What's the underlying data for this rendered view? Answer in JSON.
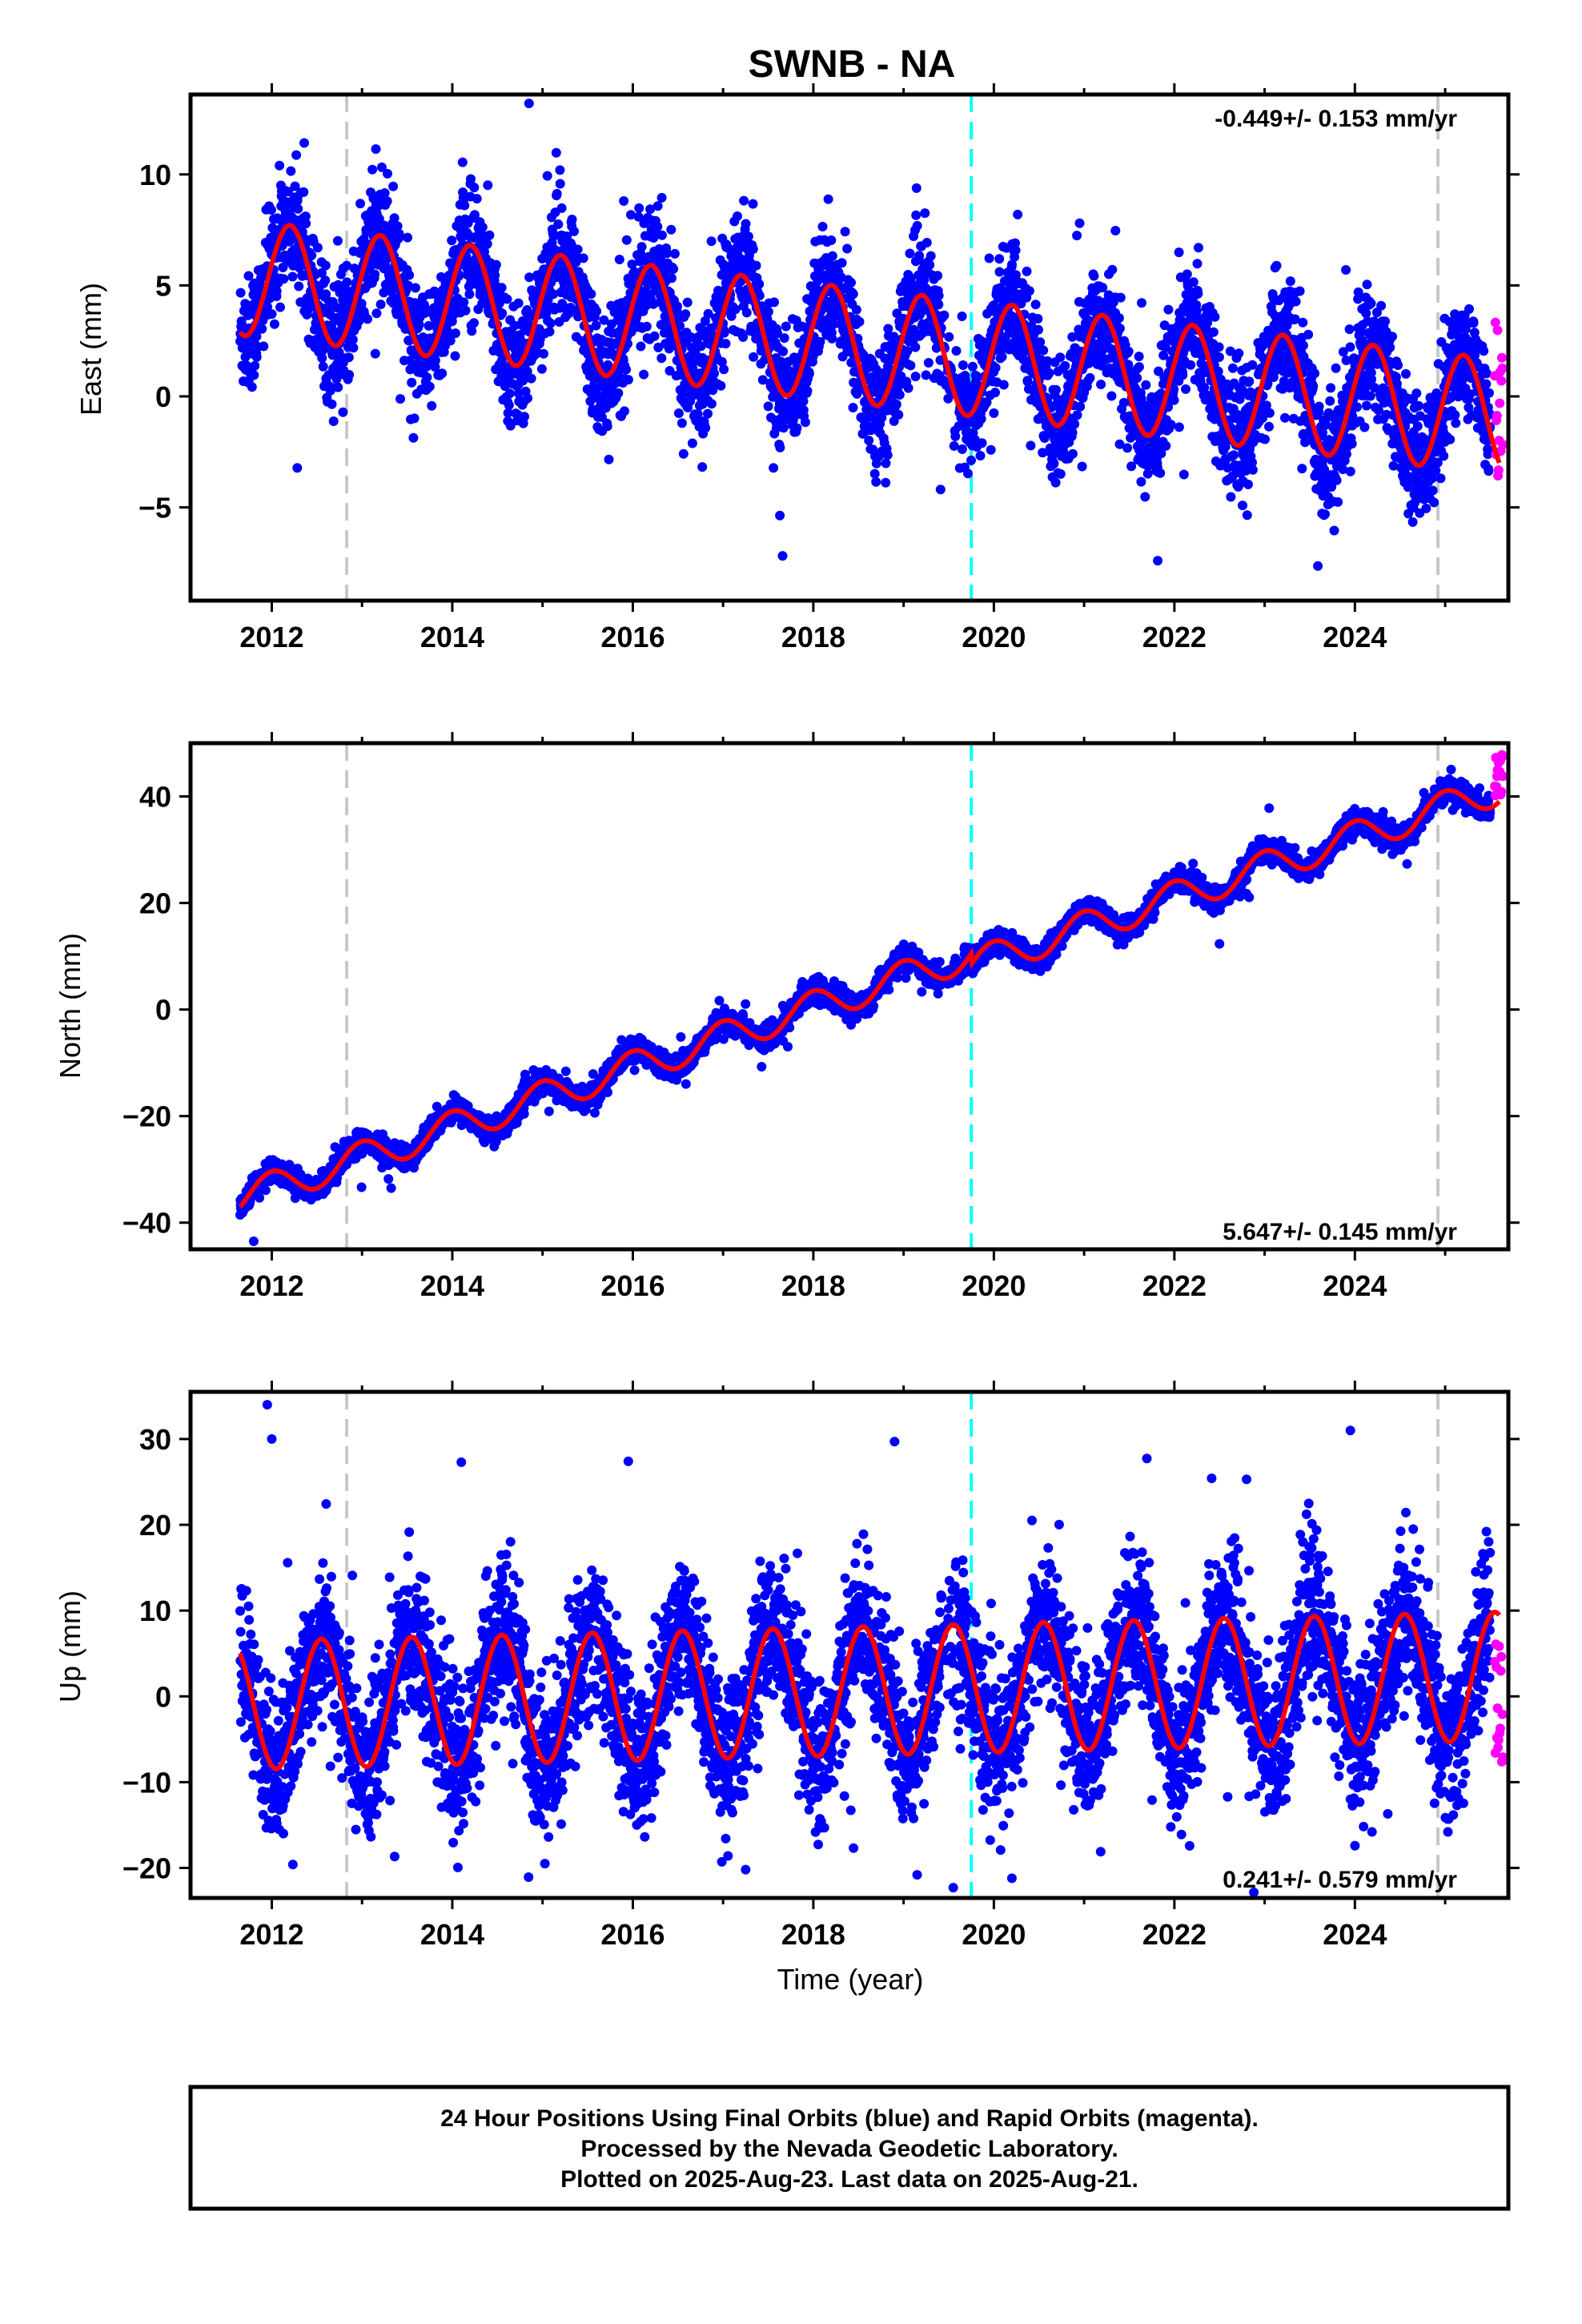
{
  "title": "SWNB - NA",
  "colors": {
    "final_orbits": "#0000ff",
    "rapid_orbits": "#ff00ff",
    "model": "#ff0000",
    "equipment_change": "#c8c8c8",
    "event": "#00ffff"
  },
  "xlabel": "Time (year)",
  "caption": [
    "24 Hour Positions Using Final Orbits (blue) and Rapid Orbits (magenta).",
    "Processed by the Nevada Geodetic Laboratory.",
    "Plotted on 2025-Aug-23. Last data on 2025-Aug-21."
  ],
  "chart_data": [
    {
      "type": "scatter",
      "component": "east",
      "ylabel": "East (mm)",
      "rate_text": "-0.449+/- 0.153 mm/yr",
      "rate_position": "top-right",
      "xlim": [
        2011.1,
        2025.7
      ],
      "ylim": [
        -9.2,
        13.6
      ],
      "xticks": [
        2012,
        2014,
        2016,
        2018,
        2020,
        2022,
        2024
      ],
      "yticks": [
        -5,
        0,
        5,
        10
      ],
      "vlines": [
        {
          "x": 2012.83,
          "color": "#c8c8c8"
        },
        {
          "x": 2019.75,
          "color": "#00ffff"
        },
        {
          "x": 2024.92,
          "color": "#c8c8c8"
        }
      ],
      "model": {
        "start": 2011.65,
        "end": 2025.6,
        "offset": 2.5,
        "rate": -0.449,
        "amplitude": 2.6,
        "phase": 0.3,
        "ref": 2018.0,
        "offset_jump_at": 2019.75,
        "offset_jump": 0.0
      },
      "scatter": {
        "sd": 1.3,
        "spread_per_year": 0.0
      },
      "rapid": {
        "start": 2025.55,
        "end": 2025.64,
        "values_min": -4.0,
        "values_max": 4.2
      },
      "outliers": [
        [
          2014.85,
          13.2
        ],
        [
          2015.9,
          8.8
        ],
        [
          2014.2,
          9.0
        ],
        [
          2020.95,
          7.8
        ],
        [
          2023.9,
          5.7
        ]
      ],
      "grid": false
    },
    {
      "type": "scatter",
      "component": "north",
      "ylabel": "North (mm)",
      "rate_text": "5.647+/- 0.145 mm/yr",
      "rate_position": "bottom-right",
      "xlim": [
        2011.1,
        2025.7
      ],
      "ylim": [
        -45,
        50
      ],
      "xticks": [
        2012,
        2014,
        2016,
        2018,
        2020,
        2022,
        2024
      ],
      "yticks": [
        -40,
        -20,
        0,
        20,
        40
      ],
      "vlines": [
        {
          "x": 2012.83,
          "color": "#c8c8c8"
        },
        {
          "x": 2019.75,
          "color": "#00ffff"
        },
        {
          "x": 2024.92,
          "color": "#c8c8c8"
        }
      ],
      "model": {
        "start": 2011.65,
        "end": 2025.6,
        "offset": 0.5,
        "rate": 5.647,
        "amplitude": 3.0,
        "phase": 1.6,
        "ref": 2018.0,
        "offset_jump_at": 2019.75,
        "offset_jump": -2.0
      },
      "scatter": {
        "sd": 1.1,
        "spread_per_year": 0.0
      },
      "rapid": {
        "start": 2025.55,
        "end": 2025.64,
        "values_min": 40.0,
        "values_max": 48.5
      },
      "outliers": [
        [
          2011.8,
          -43.5
        ],
        [
          2023.05,
          37.8
        ]
      ],
      "grid": false
    },
    {
      "type": "scatter",
      "component": "up",
      "ylabel": "Up (mm)",
      "rate_text": "0.241+/- 0.579 mm/yr",
      "rate_position": "bottom-right",
      "xlim": [
        2011.1,
        2025.7
      ],
      "ylim": [
        -23.5,
        35.5
      ],
      "xticks": [
        2012,
        2014,
        2016,
        2018,
        2020,
        2022,
        2024
      ],
      "yticks": [
        -20,
        -10,
        0,
        10,
        20,
        30
      ],
      "vlines": [
        {
          "x": 2012.83,
          "color": "#c8c8c8"
        },
        {
          "x": 2019.75,
          "color": "#00ffff"
        },
        {
          "x": 2024.92,
          "color": "#c8c8c8"
        }
      ],
      "model": {
        "start": 2011.65,
        "end": 2025.6,
        "offset": 0.5,
        "rate": 0.241,
        "amplitude": 7.5,
        "phase": 4.4,
        "ref": 2018.0,
        "offset_jump_at": 2019.75,
        "offset_jump": 0.0
      },
      "scatter": {
        "sd": 4.3,
        "spread_per_year": 0.0
      },
      "rapid": {
        "start": 2025.55,
        "end": 2025.64,
        "values_min": -8.0,
        "values_max": 6.5
      },
      "outliers": [
        [
          2011.95,
          34.0
        ],
        [
          2018.9,
          29.7
        ],
        [
          2023.95,
          31.0
        ],
        [
          2012.0,
          30.0
        ],
        [
          2014.1,
          27.3
        ],
        [
          2015.95,
          27.4
        ],
        [
          2019.55,
          -22.3
        ],
        [
          2019.15,
          -20.8
        ],
        [
          2020.2,
          -21.2
        ],
        [
          2017.25,
          -20.2
        ],
        [
          2022.8,
          25.3
        ]
      ],
      "grid": false
    }
  ]
}
